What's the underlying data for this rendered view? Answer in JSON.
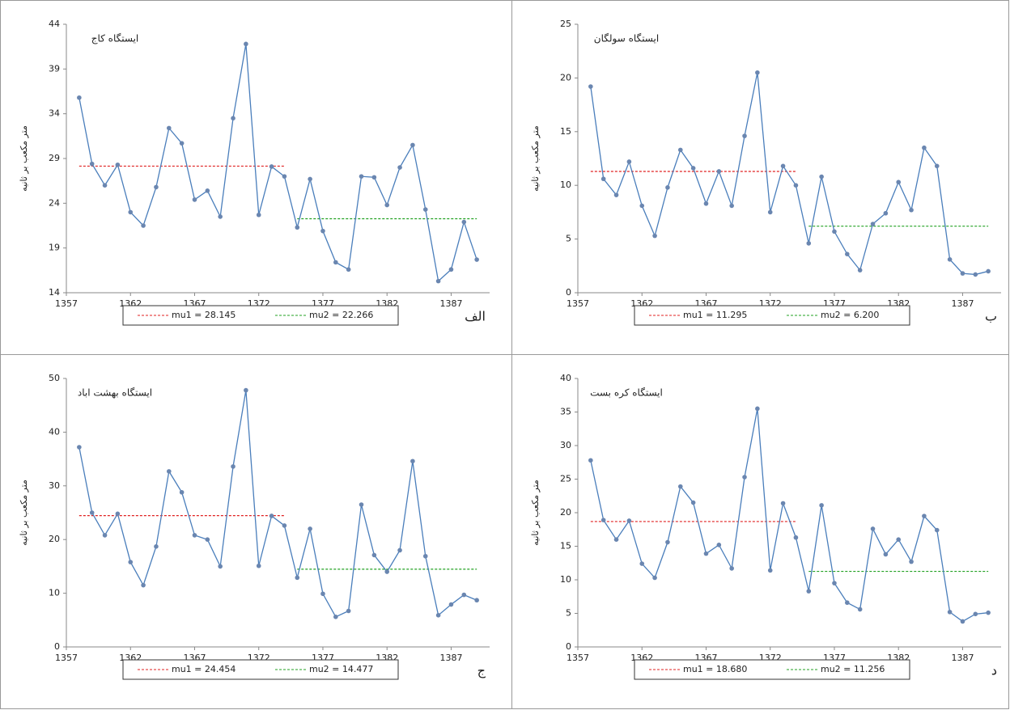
{
  "chart_data": [
    {
      "type": "line",
      "title": "ایستگاه کاج",
      "panel_label": "الف",
      "y_label": "متر مکعب بر ثانیه",
      "x": [
        1358,
        1359,
        1360,
        1361,
        1362,
        1363,
        1364,
        1365,
        1366,
        1367,
        1368,
        1369,
        1370,
        1371,
        1372,
        1373,
        1374,
        1375,
        1376,
        1377,
        1378,
        1379,
        1380,
        1381,
        1382,
        1383,
        1384,
        1385,
        1386,
        1387,
        1388,
        1389
      ],
      "series": [
        {
          "color": "#4a7ebb",
          "values": [
            35.8,
            28.4,
            26,
            28.3,
            23,
            21.5,
            25.8,
            32.4,
            30.7,
            24.4,
            25.4,
            22.5,
            33.5,
            41.8,
            22.7,
            28.1,
            27,
            21.3,
            26.7,
            20.9,
            17.4,
            16.6,
            27,
            26.9,
            23.8,
            28,
            30.5,
            23.3,
            15.3,
            16.6,
            21.9,
            17.7
          ]
        }
      ],
      "mean_lines": [
        {
          "name": "mu1 = 28.145",
          "value": 28.145,
          "from": 1358,
          "to": 1374,
          "color": "#e02020"
        },
        {
          "name": "mu2 = 22.266",
          "value": 22.266,
          "from": 1375,
          "to": 1389,
          "color": "#20a020"
        }
      ],
      "xlim": [
        1357,
        1390
      ],
      "ylim": [
        14,
        44
      ],
      "xticks": [
        1357,
        1362,
        1367,
        1372,
        1377,
        1382,
        1387
      ],
      "yticks": [
        14,
        19,
        24,
        29,
        34,
        39,
        44
      ],
      "grid": false
    },
    {
      "type": "line",
      "title": "ایستگاه سولگان",
      "panel_label": "ب",
      "y_label": "متر مکعب بر ثانیه",
      "x": [
        1358,
        1359,
        1360,
        1361,
        1362,
        1363,
        1364,
        1365,
        1366,
        1367,
        1368,
        1369,
        1370,
        1371,
        1372,
        1373,
        1374,
        1375,
        1376,
        1377,
        1378,
        1379,
        1380,
        1381,
        1382,
        1383,
        1384,
        1385,
        1386,
        1387,
        1388,
        1389
      ],
      "series": [
        {
          "color": "#4a7ebb",
          "values": [
            19.2,
            10.6,
            9.1,
            12.2,
            8.1,
            5.3,
            9.8,
            13.3,
            11.6,
            8.3,
            11.3,
            8.1,
            14.6,
            20.5,
            7.5,
            11.8,
            10,
            4.6,
            10.8,
            5.7,
            3.6,
            2.1,
            6.4,
            7.4,
            10.3,
            7.7,
            13.5,
            11.8,
            3.1,
            1.8,
            1.7,
            2
          ]
        }
      ],
      "mean_lines": [
        {
          "name": "mu1 = 11.295",
          "value": 11.295,
          "from": 1358,
          "to": 1374,
          "color": "#e02020"
        },
        {
          "name": "mu2 = 6.200",
          "value": 6.2,
          "from": 1375,
          "to": 1389,
          "color": "#20a020"
        }
      ],
      "xlim": [
        1357,
        1390
      ],
      "ylim": [
        0,
        25
      ],
      "xticks": [
        1357,
        1362,
        1367,
        1372,
        1377,
        1382,
        1387
      ],
      "yticks": [
        0,
        5,
        10,
        15,
        20,
        25
      ],
      "grid": false
    },
    {
      "type": "line",
      "title": "ایستگاه بهشت اباد",
      "panel_label": "ج",
      "y_label": "متر مکعب بر ثانیه",
      "x": [
        1358,
        1359,
        1360,
        1361,
        1362,
        1363,
        1364,
        1365,
        1366,
        1367,
        1368,
        1369,
        1370,
        1371,
        1372,
        1373,
        1374,
        1375,
        1376,
        1377,
        1378,
        1379,
        1380,
        1381,
        1382,
        1383,
        1384,
        1385,
        1386,
        1387,
        1388,
        1389
      ],
      "series": [
        {
          "color": "#4a7ebb",
          "values": [
            37.2,
            25,
            20.8,
            24.8,
            15.8,
            11.5,
            18.7,
            32.7,
            28.8,
            20.8,
            20,
            15,
            33.6,
            47.8,
            15.1,
            24.4,
            22.6,
            12.9,
            22,
            9.9,
            5.6,
            6.7,
            26.5,
            17.1,
            14,
            18,
            34.6,
            16.9,
            5.9,
            7.9,
            9.7,
            8.7
          ]
        }
      ],
      "mean_lines": [
        {
          "name": "mu1 = 24.454",
          "value": 24.454,
          "from": 1358,
          "to": 1374,
          "color": "#e02020"
        },
        {
          "name": "mu2 = 14.477",
          "value": 14.477,
          "from": 1375,
          "to": 1389,
          "color": "#20a020"
        }
      ],
      "xlim": [
        1357,
        1390
      ],
      "ylim": [
        0,
        50
      ],
      "xticks": [
        1357,
        1362,
        1367,
        1372,
        1377,
        1382,
        1387
      ],
      "yticks": [
        0,
        10,
        20,
        30,
        40,
        50
      ],
      "grid": false
    },
    {
      "type": "line",
      "title": "ایستگاه کره بست",
      "panel_label": "د",
      "y_label": "متر مکعب بر ثانیه",
      "x": [
        1358,
        1359,
        1360,
        1361,
        1362,
        1363,
        1364,
        1365,
        1366,
        1367,
        1368,
        1369,
        1370,
        1371,
        1372,
        1373,
        1374,
        1375,
        1376,
        1377,
        1378,
        1379,
        1380,
        1381,
        1382,
        1383,
        1384,
        1385,
        1386,
        1387,
        1388,
        1389
      ],
      "series": [
        {
          "color": "#4a7ebb",
          "values": [
            27.8,
            18.9,
            16,
            18.8,
            12.4,
            10.3,
            15.6,
            23.9,
            21.5,
            13.9,
            15.2,
            11.7,
            25.3,
            35.5,
            11.4,
            21.4,
            16.3,
            8.3,
            21.1,
            9.5,
            6.6,
            5.6,
            17.6,
            13.8,
            16,
            12.7,
            19.5,
            17.4,
            5.2,
            3.8,
            4.9,
            5.1
          ]
        }
      ],
      "mean_lines": [
        {
          "name": "mu1 = 18.680",
          "value": 18.68,
          "from": 1358,
          "to": 1374,
          "color": "#e02020"
        },
        {
          "name": "mu2 = 11.256",
          "value": 11.256,
          "from": 1375,
          "to": 1389,
          "color": "#20a020"
        }
      ],
      "xlim": [
        1357,
        1390
      ],
      "ylim": [
        0,
        40
      ],
      "xticks": [
        1357,
        1362,
        1367,
        1372,
        1377,
        1382,
        1387
      ],
      "yticks": [
        0,
        5,
        10,
        15,
        20,
        25,
        30,
        35,
        40
      ],
      "grid": false
    }
  ]
}
